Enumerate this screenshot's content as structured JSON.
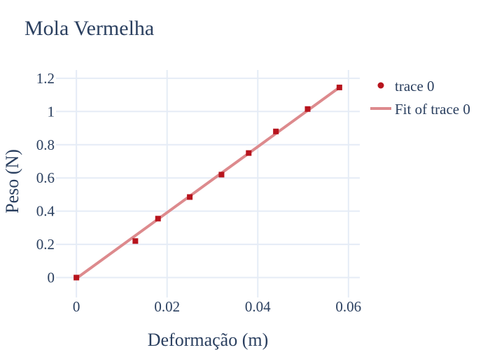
{
  "chart_data": {
    "type": "scatter",
    "title": "Mola Vermelha",
    "xlabel": "Deformação (m)",
    "ylabel": "Peso (N)",
    "xlim": [
      -0.0045,
      0.0625
    ],
    "ylim": [
      -0.12,
      1.25
    ],
    "grid": true,
    "legend_position": "top-right",
    "x_ticks": [
      {
        "value": 0,
        "label": "0"
      },
      {
        "value": 0.02,
        "label": "0.02"
      },
      {
        "value": 0.04,
        "label": "0.04"
      },
      {
        "value": 0.06,
        "label": "0.06"
      }
    ],
    "y_ticks": [
      {
        "value": 0,
        "label": "0"
      },
      {
        "value": 0.2,
        "label": "0.2"
      },
      {
        "value": 0.4,
        "label": "0.4"
      },
      {
        "value": 0.6,
        "label": "0.6"
      },
      {
        "value": 0.8,
        "label": "0.8"
      },
      {
        "value": 1.0,
        "label": "1"
      },
      {
        "value": 1.2,
        "label": "1.2"
      }
    ],
    "series": [
      {
        "name": "trace 0",
        "mode": "markers",
        "color": "#b7141d",
        "x": [
          0,
          0.013,
          0.018,
          0.025,
          0.032,
          0.038,
          0.044,
          0.051,
          0.058
        ],
        "y": [
          0,
          0.22,
          0.355,
          0.485,
          0.62,
          0.75,
          0.88,
          1.015,
          1.145
        ]
      },
      {
        "name": "Fit of trace 0",
        "mode": "lines",
        "color": "#dd8a8d",
        "x": [
          0,
          0.058
        ],
        "y": [
          -0.005,
          1.145
        ]
      }
    ]
  }
}
